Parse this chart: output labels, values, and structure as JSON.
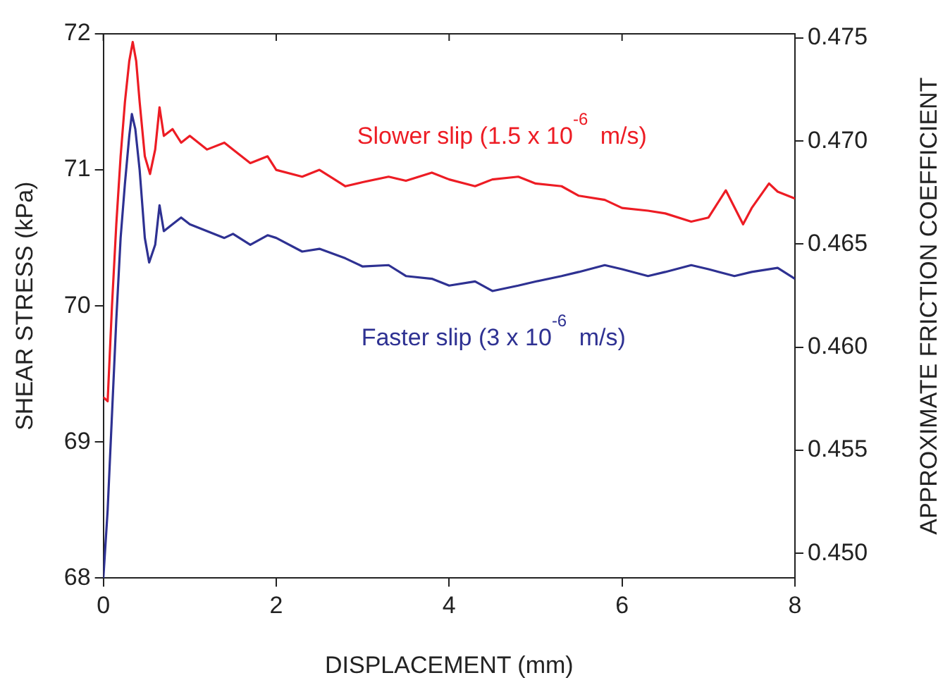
{
  "chart_data": {
    "type": "line",
    "xlabel": "DISPLACEMENT (mm)",
    "ylabel": "SHEAR STRESS (kPa)",
    "y2label": "APPROXIMATE FRICTION COEFFICIENT",
    "xlim": [
      0,
      8
    ],
    "xticks": [
      0,
      2,
      4,
      6,
      8
    ],
    "ylim": [
      68,
      72
    ],
    "yticks": [
      68,
      69,
      70,
      71,
      72
    ],
    "y2lim": [
      0.4488,
      0.4752
    ],
    "y2ticks": [
      {
        "value": 0.45,
        "label": "0.450"
      },
      {
        "value": 0.455,
        "label": "0.455"
      },
      {
        "value": 0.46,
        "label": "0.460"
      },
      {
        "value": 0.465,
        "label": "0.465"
      },
      {
        "value": 0.47,
        "label": "0.470"
      },
      {
        "value": 0.475,
        "label": "0.475"
      }
    ],
    "grid": false,
    "legend": false,
    "marker": "none",
    "line_style": "solid",
    "series": [
      {
        "name": "Slower slip (1.5 x 10$^{-6}$ m/s)",
        "color": "#ed1c24",
        "x": [
          0,
          0.05,
          0.1,
          0.15,
          0.2,
          0.25,
          0.3,
          0.34,
          0.38,
          0.42,
          0.48,
          0.54,
          0.6,
          0.65,
          0.7,
          0.8,
          0.9,
          1.0,
          1.2,
          1.4,
          1.5,
          1.7,
          1.9,
          2.0,
          2.3,
          2.5,
          2.8,
          3.0,
          3.3,
          3.5,
          3.8,
          4.0,
          4.3,
          4.5,
          4.8,
          5.0,
          5.3,
          5.5,
          5.8,
          6.0,
          6.3,
          6.5,
          6.8,
          7.0,
          7.2,
          7.4,
          7.5,
          7.7,
          7.8,
          8.0
        ],
        "values": [
          69.33,
          69.3,
          70.0,
          70.6,
          71.1,
          71.5,
          71.8,
          71.94,
          71.8,
          71.5,
          71.1,
          70.97,
          71.15,
          71.46,
          71.25,
          71.3,
          71.2,
          71.25,
          71.15,
          71.2,
          71.15,
          71.05,
          71.1,
          71.0,
          70.95,
          71.0,
          70.88,
          70.91,
          70.95,
          70.92,
          70.98,
          70.93,
          70.88,
          70.93,
          70.95,
          70.9,
          70.88,
          70.81,
          70.78,
          70.72,
          70.7,
          70.68,
          70.62,
          70.65,
          70.85,
          70.6,
          70.72,
          70.9,
          70.84,
          70.79
        ]
      },
      {
        "name": "Faster slip (3 x 10$^{-6}$ m/s)",
        "color": "#2e3192",
        "x": [
          0,
          0.05,
          0.1,
          0.15,
          0.2,
          0.25,
          0.3,
          0.33,
          0.37,
          0.42,
          0.48,
          0.53,
          0.6,
          0.65,
          0.7,
          0.8,
          0.9,
          1.0,
          1.2,
          1.4,
          1.5,
          1.7,
          1.9,
          2.0,
          2.3,
          2.5,
          2.8,
          3.0,
          3.3,
          3.5,
          3.8,
          4.0,
          4.3,
          4.5,
          4.8,
          5.0,
          5.3,
          5.5,
          5.8,
          6.0,
          6.3,
          6.5,
          6.8,
          7.0,
          7.3,
          7.5,
          7.8,
          8.0
        ],
        "values": [
          68.0,
          68.5,
          69.2,
          69.9,
          70.5,
          70.9,
          71.25,
          71.41,
          71.3,
          71.0,
          70.5,
          70.32,
          70.45,
          70.74,
          70.55,
          70.6,
          70.65,
          70.6,
          70.55,
          70.5,
          70.53,
          70.45,
          70.52,
          70.5,
          70.4,
          70.42,
          70.35,
          70.29,
          70.3,
          70.22,
          70.2,
          70.15,
          70.18,
          70.11,
          70.15,
          70.18,
          70.22,
          70.25,
          70.3,
          70.27,
          70.22,
          70.25,
          70.3,
          70.27,
          70.22,
          70.25,
          70.28,
          70.2
        ]
      }
    ]
  }
}
